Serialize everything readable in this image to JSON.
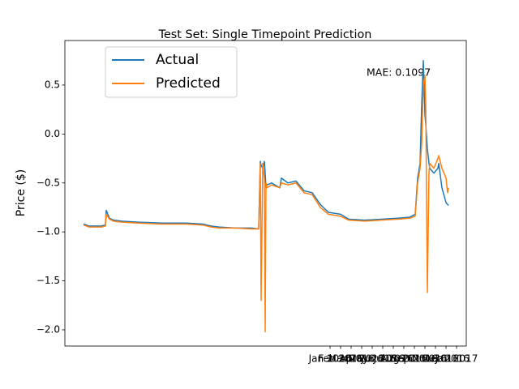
{
  "chart_data": {
    "type": "line",
    "title": "Test Set: Single Timepoint Prediction",
    "ylabel": "Price ($)",
    "annotation": "MAE: 0.1097",
    "legend": "upper left",
    "x": [
      0,
      7,
      22,
      27,
      28,
      32,
      37,
      47,
      67,
      97,
      127,
      147,
      157,
      167,
      187,
      207,
      216,
      218,
      219,
      221,
      223,
      224,
      225,
      226,
      232,
      242,
      244,
      252,
      262,
      272,
      282,
      292,
      302,
      317,
      327,
      347,
      367,
      387,
      402,
      409,
      412,
      415,
      417,
      419,
      421,
      422,
      424,
      426,
      427,
      432,
      437,
      438,
      442,
      447,
      449,
      450
    ],
    "series": [
      {
        "name": "Actual",
        "color": "#1f77b4",
        "values": [
          -0.92,
          -0.94,
          -0.94,
          -0.93,
          -0.78,
          -0.86,
          -0.88,
          -0.89,
          -0.9,
          -0.91,
          -0.91,
          -0.92,
          -0.94,
          -0.95,
          -0.96,
          -0.96,
          -0.97,
          -0.28,
          -0.32,
          -0.35,
          -0.28,
          -0.4,
          -0.55,
          -0.52,
          -0.5,
          -0.55,
          -0.45,
          -0.5,
          -0.48,
          -0.58,
          -0.6,
          -0.72,
          -0.8,
          -0.82,
          -0.87,
          -0.88,
          -0.87,
          -0.86,
          -0.85,
          -0.82,
          -0.45,
          -0.3,
          0.3,
          0.75,
          0.2,
          0.1,
          -0.15,
          -0.3,
          -0.35,
          -0.4,
          -0.35,
          -0.3,
          -0.55,
          -0.7,
          -0.72,
          -0.73
        ]
      },
      {
        "name": "Predicted",
        "color": "#ff7f0e",
        "values": [
          -0.93,
          -0.95,
          -0.95,
          -0.94,
          -0.82,
          -0.87,
          -0.89,
          -0.9,
          -0.91,
          -0.92,
          -0.92,
          -0.93,
          -0.95,
          -0.96,
          -0.96,
          -0.97,
          -0.97,
          -0.3,
          -1.7,
          -0.3,
          -0.45,
          -2.02,
          -0.5,
          -0.55,
          -0.52,
          -0.55,
          -0.5,
          -0.52,
          -0.5,
          -0.6,
          -0.62,
          -0.75,
          -0.82,
          -0.84,
          -0.88,
          -0.89,
          -0.88,
          -0.87,
          -0.86,
          -0.84,
          -0.5,
          -0.35,
          -0.1,
          0.5,
          0.6,
          0.3,
          -1.62,
          -0.4,
          -0.3,
          -0.35,
          -0.25,
          -0.22,
          -0.35,
          -0.45,
          -0.6,
          -0.55
        ]
      }
    ],
    "xlim": [
      -23,
      472
    ],
    "xticks": [
      {
        "value": 304,
        "label": "Jan 2016"
      },
      {
        "value": 317,
        "label": "Feb 2016"
      },
      {
        "value": 330,
        "label": "Mar 2016"
      },
      {
        "value": 343,
        "label": "Apr 2016"
      },
      {
        "value": 356,
        "label": "May 2016"
      },
      {
        "value": 369,
        "label": "Jun 2016"
      },
      {
        "value": 382,
        "label": "Jul 2016"
      },
      {
        "value": 395,
        "label": "Aug 2016"
      },
      {
        "value": 408,
        "label": "Sep 2016"
      },
      {
        "value": 421,
        "label": "Oct 2016"
      },
      {
        "value": 434,
        "label": "Nov 2016"
      },
      {
        "value": 447,
        "label": "Dec 2016"
      },
      {
        "value": 460,
        "label": "Jan 2017"
      }
    ],
    "ylim": [
      -2.166,
      0.955
    ],
    "yticks": [
      {
        "value": 0.5,
        "label": "0.5"
      },
      {
        "value": 0.0,
        "label": "0.0"
      },
      {
        "value": -0.5,
        "label": "−0.5"
      },
      {
        "value": -1.0,
        "label": "−1.0"
      },
      {
        "value": -1.5,
        "label": "−1.5"
      },
      {
        "value": -2.0,
        "label": "−2.0"
      }
    ]
  }
}
